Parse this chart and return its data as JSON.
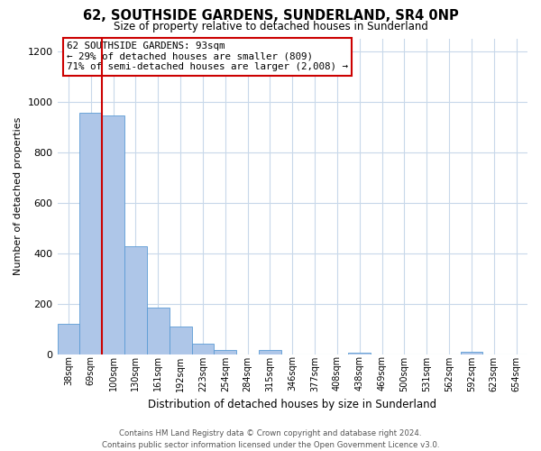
{
  "title": "62, SOUTHSIDE GARDENS, SUNDERLAND, SR4 0NP",
  "subtitle": "Size of property relative to detached houses in Sunderland",
  "xlabel": "Distribution of detached houses by size in Sunderland",
  "ylabel": "Number of detached properties",
  "bin_labels": [
    "38sqm",
    "69sqm",
    "100sqm",
    "130sqm",
    "161sqm",
    "192sqm",
    "223sqm",
    "254sqm",
    "284sqm",
    "315sqm",
    "346sqm",
    "377sqm",
    "408sqm",
    "438sqm",
    "469sqm",
    "500sqm",
    "531sqm",
    "562sqm",
    "592sqm",
    "623sqm",
    "654sqm"
  ],
  "bar_values": [
    120,
    955,
    945,
    428,
    185,
    112,
    42,
    18,
    0,
    18,
    0,
    0,
    0,
    8,
    0,
    0,
    0,
    0,
    12,
    0,
    0
  ],
  "bar_color": "#aec6e8",
  "bar_edge_color": "#5b9bd5",
  "vline_color": "#cc0000",
  "vline_x": 1.5,
  "ylim": [
    0,
    1250
  ],
  "yticks": [
    0,
    200,
    400,
    600,
    800,
    1000,
    1200
  ],
  "annotation_title": "62 SOUTHSIDE GARDENS: 93sqm",
  "annotation_line1": "← 29% of detached houses are smaller (809)",
  "annotation_line2": "71% of semi-detached houses are larger (2,008) →",
  "annotation_box_color": "#ffffff",
  "annotation_box_edge": "#cc0000",
  "footer_line1": "Contains HM Land Registry data © Crown copyright and database right 2024.",
  "footer_line2": "Contains public sector information licensed under the Open Government Licence v3.0.",
  "background_color": "#ffffff",
  "grid_color": "#c8d8ea"
}
